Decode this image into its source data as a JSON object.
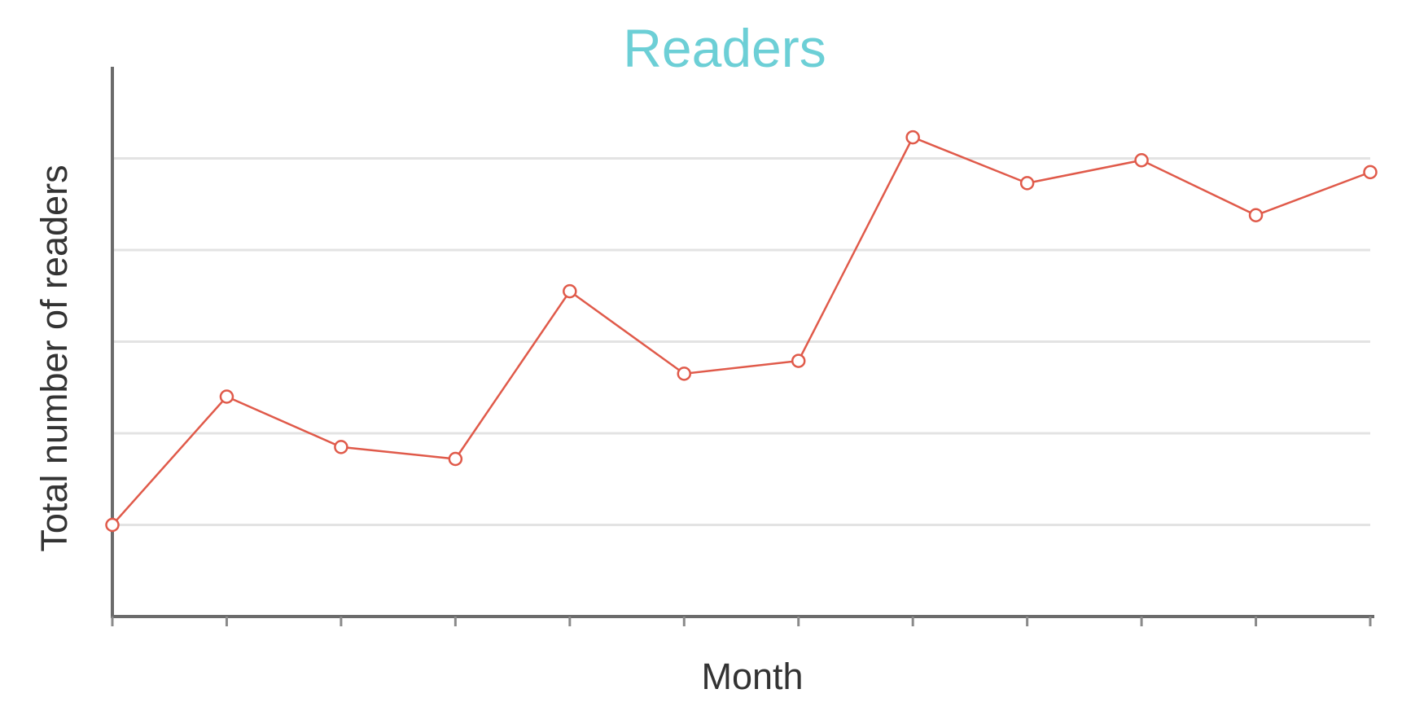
{
  "chart_data": {
    "type": "line",
    "title": "Readers",
    "xlabel": "Month",
    "ylabel": "Total number of readers",
    "x_tick_labels": [],
    "y_tick_labels": [],
    "grid": true,
    "ylim": [
      0,
      6
    ],
    "series": [
      {
        "values": [
          1.0,
          2.4,
          1.85,
          1.72,
          3.55,
          2.65,
          2.79,
          5.23,
          4.73,
          4.98,
          4.38,
          4.85
        ]
      }
    ],
    "gridline_values": [
      1,
      2,
      3,
      4,
      5
    ],
    "colors": {
      "title": "#6ccfd6",
      "series": "#e05a4a",
      "axis": "#6b6b6b",
      "grid": "#e3e3e3"
    }
  }
}
